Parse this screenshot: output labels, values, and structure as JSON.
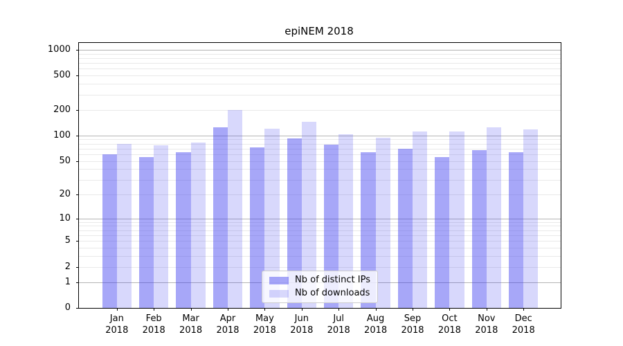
{
  "title": "epiNEM 2018",
  "chart_data": {
    "type": "bar",
    "title": "epiNEM 2018",
    "y_scale": "log10(value+1)",
    "ylim": [
      0,
      1200
    ],
    "y_ticks": [
      0,
      1,
      2,
      5,
      10,
      20,
      50,
      100,
      200,
      500,
      1000
    ],
    "grid": "horizontal major and minor gridlines",
    "legend_position": "lower center",
    "categories": [
      "Jan 2018",
      "Feb 2018",
      "Mar 2018",
      "Apr 2018",
      "May 2018",
      "Jun 2018",
      "Jul 2018",
      "Aug 2018",
      "Sep 2018",
      "Oct 2018",
      "Nov 2018",
      "Dec 2018"
    ],
    "series": [
      {
        "name": "Nb of distinct IPs",
        "key": "distinct-ips",
        "color": "rgba(60,60,240,0.45)",
        "values": [
          60,
          56,
          64,
          124,
          73,
          92,
          78,
          63,
          70,
          56,
          67,
          64
        ]
      },
      {
        "name": "Nb of downloads",
        "key": "downloads",
        "color": "rgba(60,60,240,0.20)",
        "values": [
          80,
          77,
          82,
          200,
          120,
          146,
          104,
          95,
          111,
          111,
          125,
          118
        ]
      }
    ],
    "colors": {
      "bar_distinct_ips": "#a8a8f8",
      "bar_downloads": "#d8d8fa",
      "grid_major": "#b3b3b3",
      "grid_minor": "#e9e9e9",
      "axis": "#000000",
      "background": "#ffffff"
    }
  }
}
